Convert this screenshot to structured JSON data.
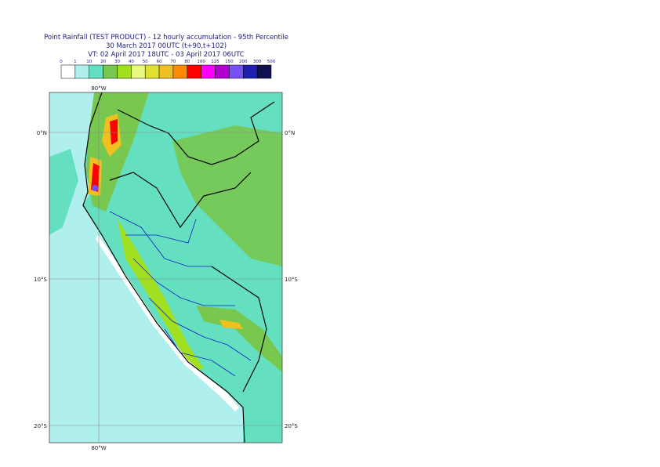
{
  "header": {
    "title": "Point Rainfall (TEST PRODUCT) - 12 hourly accumulation - 95th Percentile",
    "base_time": "30 March 2017 00UTC (t+90,t+102)",
    "valid_time": "VT: 02 April 2017 18UTC - 03 April 2017 06UTC"
  },
  "legend": {
    "thresholds": [
      0,
      1,
      10,
      20,
      30,
      40,
      50,
      60,
      70,
      80,
      100,
      125,
      150,
      200,
      300,
      500
    ],
    "colors": [
      "#ffffff",
      "#aff0ef",
      "#64e0c0",
      "#78c850",
      "#a0e020",
      "#e8f880",
      "#e0e030",
      "#f0c020",
      "#ff8c00",
      "#ff0000",
      "#ff00ff",
      "#b000d0",
      "#7850f0",
      "#2020b0",
      "#101050"
    ]
  },
  "map": {
    "lon_labels": [
      "80°W"
    ],
    "lat_labels": [
      "0°N",
      "10°S",
      "20°S"
    ]
  }
}
